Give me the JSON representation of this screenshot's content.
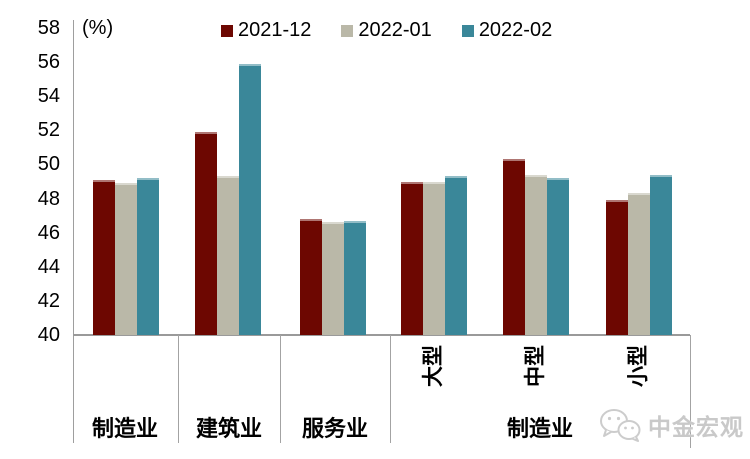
{
  "chart_data": {
    "type": "bar",
    "unit_label": "(%)",
    "grid": false,
    "legend_position": "top",
    "y_axis": {
      "min": 40,
      "max": 58,
      "ticks": [
        58,
        56,
        54,
        52,
        50,
        48,
        46,
        44,
        42,
        40
      ]
    },
    "categories": [
      "制造业",
      "建筑业",
      "服务业",
      "大型",
      "中型",
      "小型"
    ],
    "x_axis": {
      "tier1_labels": [
        "制造业",
        "建筑业",
        "服务业",
        "制造业"
      ],
      "tier2_rotated_labels": [
        "大型",
        "中型",
        "小型"
      ]
    },
    "series": [
      {
        "name": "2021-12",
        "color": "#6D0701",
        "values": [
          49.1,
          51.9,
          46.8,
          49.0,
          50.3,
          47.9
        ]
      },
      {
        "name": "2022-01",
        "color": "#BAB8A8",
        "values": [
          48.9,
          49.3,
          46.6,
          49.0,
          49.4,
          48.3
        ]
      },
      {
        "name": "2022-02",
        "color": "#3A8799",
        "values": [
          49.2,
          55.9,
          46.7,
          49.3,
          49.2,
          49.4
        ]
      }
    ]
  },
  "watermark": {
    "text": "中金宏观",
    "icon": "wechat-icon"
  },
  "colors": {
    "axis": "#9e9e9e",
    "text": "#000000",
    "watermark": "#c9c9c9"
  }
}
